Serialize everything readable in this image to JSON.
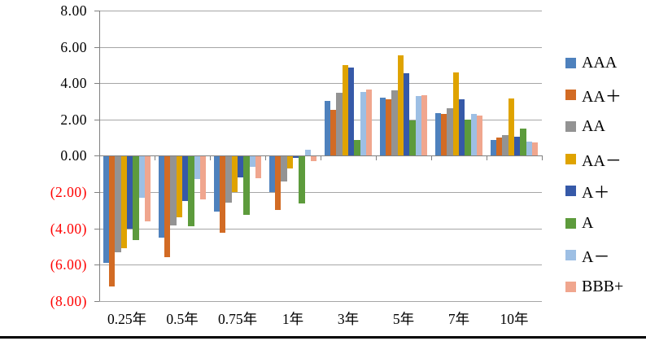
{
  "chart_data": {
    "type": "bar",
    "title": "",
    "categories": [
      "0.25年",
      "0.5年",
      "0.75年",
      "1年",
      "3年",
      "5年",
      "7年",
      "10年"
    ],
    "series": [
      {
        "name": "AAA",
        "color": "#4e81bd",
        "values": [
          -5.9,
          -4.5,
          -3.1,
          -2.0,
          3.0,
          3.2,
          2.35,
          0.85
        ]
      },
      {
        "name": "AA＋",
        "color": "#d26b24",
        "values": [
          -7.2,
          -5.6,
          -4.25,
          -3.0,
          2.55,
          3.1,
          2.3,
          1.0
        ]
      },
      {
        "name": "AA",
        "color": "#939393",
        "values": [
          -5.3,
          -3.85,
          -2.6,
          -1.4,
          3.45,
          3.6,
          2.6,
          1.15
        ]
      },
      {
        "name": "AA－",
        "color": "#dfa300",
        "values": [
          -5.1,
          -3.4,
          -2.0,
          -0.7,
          5.0,
          5.55,
          4.6,
          3.15
        ]
      },
      {
        "name": "A＋",
        "color": "#3659a8",
        "values": [
          -4.0,
          -2.5,
          -1.2,
          -0.1,
          4.85,
          4.55,
          3.1,
          1.05
        ]
      },
      {
        "name": "A",
        "color": "#5d9b3c",
        "values": [
          -4.65,
          -3.9,
          -3.25,
          -2.65,
          0.85,
          1.95,
          2.0,
          1.5
        ]
      },
      {
        "name": "A－",
        "color": "#9dbfe4",
        "values": [
          -2.3,
          -1.3,
          -0.6,
          0.35,
          3.5,
          3.3,
          2.3,
          0.8
        ]
      },
      {
        "name": "BBB+",
        "color": "#f0a68e",
        "values": [
          -3.6,
          -2.4,
          -1.25,
          -0.3,
          3.65,
          3.35,
          2.2,
          0.75
        ]
      }
    ],
    "y_axis": {
      "min": -8,
      "max": 8,
      "step": 2,
      "tick_labels": [
        "8.00",
        "6.00",
        "4.00",
        "2.00",
        "0.00",
        "(2.00)",
        "(4.00)",
        "(6.00)",
        "(8.00)"
      ],
      "negative_label_color": "#ff0000"
    },
    "legend_position": "right",
    "grid": true
  }
}
